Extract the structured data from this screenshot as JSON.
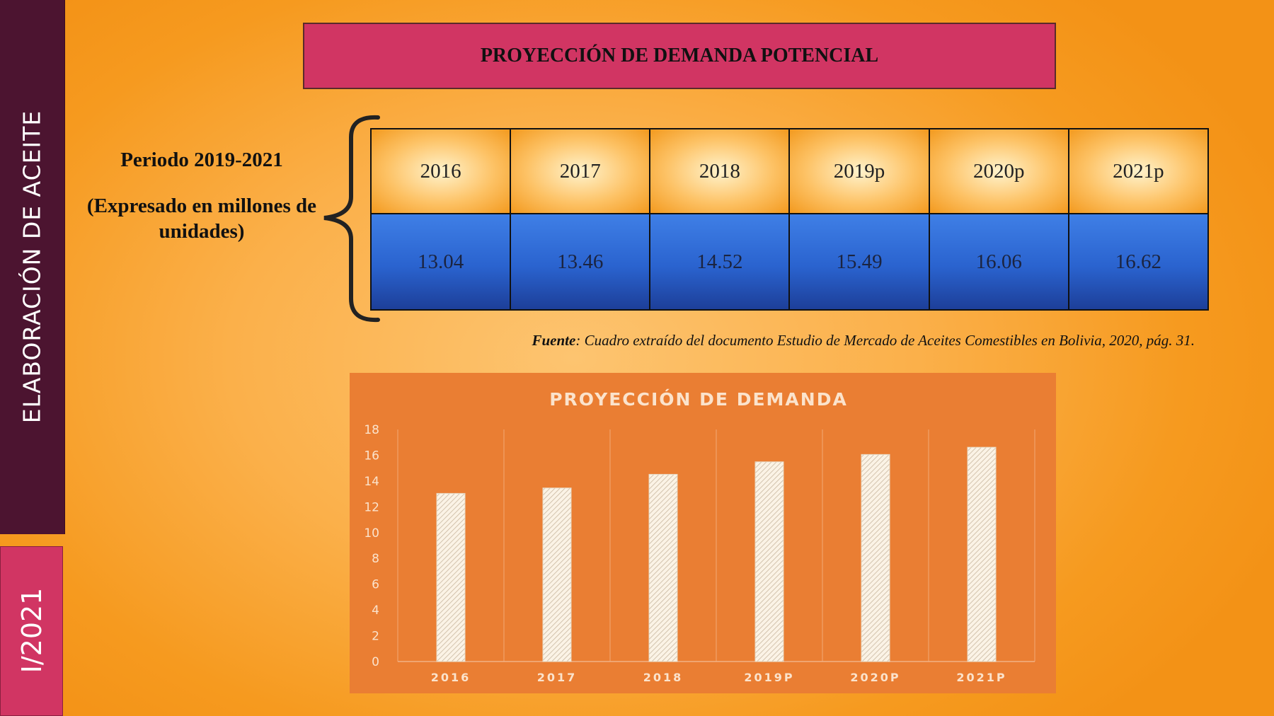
{
  "sidebar": {
    "title": "ELABORACIÓN DE ACEITE",
    "period_label": "I/2021"
  },
  "banner": {
    "title": "PROYECCIÓN DE DEMANDA POTENCIAL"
  },
  "period": {
    "line1": "Periodo 2019-2021",
    "line2": "(Expresado en millones de unidades)"
  },
  "table": {
    "years": [
      "2016",
      "2017",
      "2018",
      "2019p",
      "2020p",
      "2021p"
    ],
    "values": [
      "13.04",
      "13.46",
      "14.52",
      "15.49",
      "16.06",
      "16.62"
    ]
  },
  "source": {
    "label": "Fuente",
    "text": ": Cuadro extraído del documento Estudio de Mercado de Aceites Comestibles en Bolivia, 2020, pág. 31."
  },
  "colors": {
    "sidebar_dark": "#4c1430",
    "accent_pink": "#d13563",
    "chart_bg": "#ea7e33",
    "value_row_blue": "#2a63cf"
  },
  "chart_data": {
    "type": "bar",
    "title": "PROYECCIÓN DE DEMANDA",
    "categories": [
      "2016",
      "2017",
      "2018",
      "2019P",
      "2020P",
      "2021P"
    ],
    "values": [
      13.04,
      13.46,
      14.52,
      15.49,
      16.06,
      16.62
    ],
    "xlabel": "",
    "ylabel": "",
    "ylim": [
      0,
      18
    ],
    "yticks": [
      0,
      2,
      4,
      6,
      8,
      10,
      12,
      14,
      16,
      18
    ],
    "grid": "vertical",
    "legend": "none"
  }
}
